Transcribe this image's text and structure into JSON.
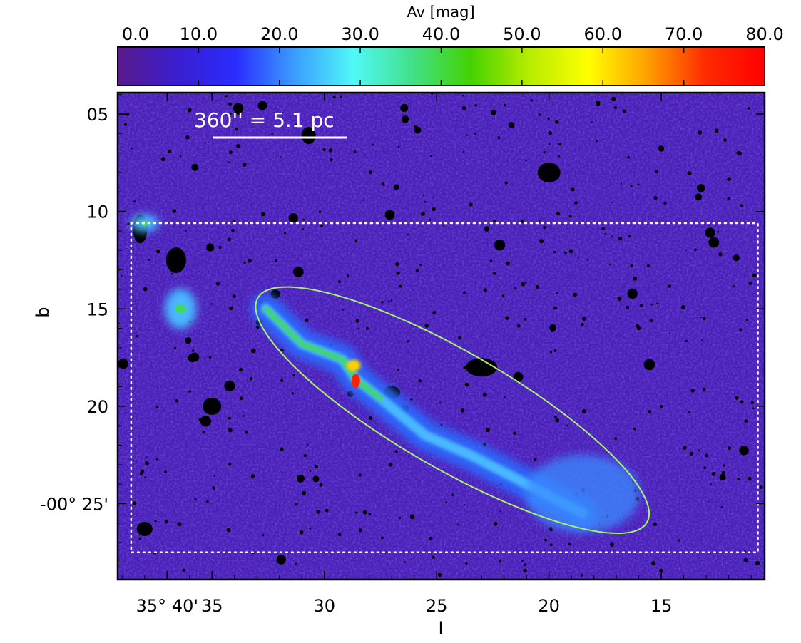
{
  "chart_data": {
    "type": "heatmap",
    "title": "",
    "colorbar": {
      "label": "Av [mag]",
      "range": [
        0,
        80
      ],
      "ticks": [
        0,
        10,
        20,
        30,
        40,
        50,
        60,
        70,
        80
      ],
      "tick_labels": [
        "0.0",
        "10.0",
        "20.0",
        "30.0",
        "40.0",
        "50.0",
        "60.0",
        "70.0",
        "80.0"
      ],
      "colormap": [
        "#5a1a8c",
        "#3a1ecf",
        "#2a2cff",
        "#3a9cff",
        "#50f8f8",
        "#42e08a",
        "#44d200",
        "#b8ec00",
        "#ffff00",
        "#ffa000",
        "#ff2a00",
        "#ff0000"
      ]
    },
    "xlabel": "l",
    "ylabel": "b",
    "x_ticks": [
      {
        "arcmin": 37,
        "label": "35° 40'"
      },
      {
        "arcmin": 35,
        "label": "35"
      },
      {
        "arcmin": 30,
        "label": "30"
      },
      {
        "arcmin": 25,
        "label": "25"
      },
      {
        "arcmin": 20,
        "label": "20"
      },
      {
        "arcmin": 15,
        "label": "15"
      }
    ],
    "y_ticks": [
      {
        "arcmin": 5,
        "label": "05"
      },
      {
        "arcmin": 10,
        "label": "10"
      },
      {
        "arcmin": 15,
        "label": "15"
      },
      {
        "arcmin": 20,
        "label": "20"
      },
      {
        "arcmin": 25,
        "label": "-00° 25'"
      }
    ],
    "xlim_arcmin": [
      39.2,
      10.4
    ],
    "ylim_arcmin": [
      3.9,
      28.9
    ],
    "scalebar": {
      "label": "360'' = 5.1 pc",
      "length_arcmin": 6.0
    },
    "dotted_box_arcmin": {
      "l": [
        38.6,
        10.7
      ],
      "b": [
        10.6,
        27.5
      ]
    },
    "ellipse": {
      "center_l": 24.3,
      "center_b": 20.2,
      "semi_major_arcmin": 10.0,
      "semi_minor_arcmin": 2.6,
      "orientation": "NW-SE",
      "color": "#a8f070"
    },
    "background_level_mag": 5,
    "features": [
      {
        "name": "main filament",
        "peak_av": 80,
        "path_arcmin": [
          [
            32.6,
            15.0
          ],
          [
            31.0,
            16.8
          ],
          [
            29.2,
            17.6
          ],
          [
            28.6,
            18.6
          ],
          [
            27.5,
            19.6
          ],
          [
            25.5,
            21.5
          ],
          [
            23.5,
            22.5
          ],
          [
            21.0,
            24.0
          ],
          [
            18.5,
            25.5
          ]
        ]
      },
      {
        "name": "west clump",
        "peak_av": 40,
        "l": 36.4,
        "b": 15.0
      },
      {
        "name": "far-west clump",
        "peak_av": 38,
        "l": 38.0,
        "b": 10.6
      },
      {
        "name": "SE diffuse region",
        "peak_av": 22,
        "l": 18.5,
        "b": 24.5
      }
    ]
  }
}
